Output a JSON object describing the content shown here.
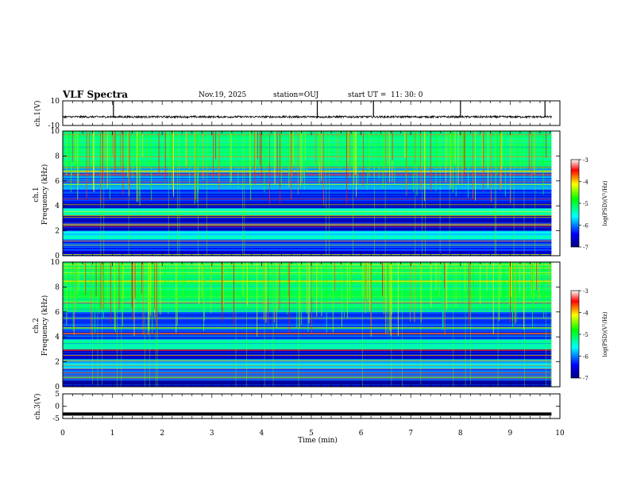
{
  "header": {
    "title": "VLF Spectra",
    "date": "Nov.19, 2025",
    "station": "station=OUJ",
    "start_ut_label": "start  UT  =",
    "start_ut_value": "11: 30: 0"
  },
  "chart_data": [
    {
      "type": "line",
      "name": "ch1-waveform",
      "ylabel": "ch.1(V)",
      "ylim": [
        -10,
        10
      ],
      "yticks": [
        "10",
        "-10"
      ],
      "xlim": [
        0,
        10
      ],
      "baseline": -3,
      "spikes_minutes": [
        1.02,
        5.12,
        6.25,
        8.0,
        9.7
      ]
    },
    {
      "type": "heatmap",
      "name": "ch1-spectrogram",
      "ylabel_channel": "ch.1",
      "ylabel": "Frequency  (kHz)",
      "ylim": [
        0,
        10
      ],
      "yticks": [
        "0",
        "2",
        "4",
        "6",
        "8",
        "10"
      ],
      "xlim": [
        0,
        10
      ],
      "data_end_minute": 9.83,
      "bands_khz": [
        {
          "from": 0.0,
          "to": 0.4,
          "level": -6.6
        },
        {
          "from": 0.4,
          "to": 1.3,
          "level": -6.3
        },
        {
          "from": 1.3,
          "to": 2.0,
          "level": -5.6
        },
        {
          "from": 2.0,
          "to": 3.2,
          "level": -6.6
        },
        {
          "from": 3.2,
          "to": 3.8,
          "level": -5.4
        },
        {
          "from": 3.8,
          "to": 4.2,
          "level": -6.8
        },
        {
          "from": 4.2,
          "to": 5.3,
          "level": -6.3
        },
        {
          "from": 5.3,
          "to": 7.0,
          "level": -5.9
        },
        {
          "from": 7.0,
          "to": 10.0,
          "level": -5.2
        }
      ],
      "colorbar": {
        "label": "log(PSD)(V²/Hz)",
        "ticks": [
          "-3",
          "-4",
          "-5",
          "-6",
          "-7"
        ],
        "range": [
          -7,
          -3
        ]
      }
    },
    {
      "type": "heatmap",
      "name": "ch2-spectrogram",
      "ylabel_channel": "ch.2",
      "ylabel": "Frequency  (kHz)",
      "ylim": [
        0,
        10
      ],
      "yticks": [
        "0",
        "2",
        "4",
        "6",
        "8",
        "10"
      ],
      "xlim": [
        0,
        10
      ],
      "data_end_minute": 9.83,
      "bands_khz": [
        {
          "from": 0.0,
          "to": 0.5,
          "level": -6.8
        },
        {
          "from": 0.5,
          "to": 1.5,
          "level": -6.2
        },
        {
          "from": 1.5,
          "to": 2.2,
          "level": -5.7
        },
        {
          "from": 2.2,
          "to": 3.0,
          "level": -6.6
        },
        {
          "from": 3.0,
          "to": 3.8,
          "level": -5.3
        },
        {
          "from": 3.8,
          "to": 6.0,
          "level": -6.2
        },
        {
          "from": 6.0,
          "to": 10.0,
          "level": -5.1
        }
      ],
      "colorbar": {
        "label": "log(PSD)(V²/Hz)",
        "ticks": [
          "-3",
          "-4",
          "-5",
          "-6",
          "-7"
        ],
        "range": [
          -7,
          -3
        ]
      }
    },
    {
      "type": "line",
      "name": "ch3-waveform",
      "ylabel": "ch.3(V)",
      "ylim": [
        -5,
        5
      ],
      "yticks": [
        "5",
        "0",
        "-5"
      ],
      "xlim": [
        0,
        10
      ],
      "baseline": -3
    }
  ],
  "xaxis": {
    "label": "Time  (min)",
    "ticks": [
      "0",
      "1",
      "2",
      "3",
      "4",
      "5",
      "6",
      "7",
      "8",
      "9",
      "10"
    ]
  },
  "colors": {
    "low": "#000080",
    "mid_low": "#00ffff",
    "mid": "#00ff00",
    "mid_high": "#ffff00",
    "high": "#ff0000",
    "top": "#ffffff"
  }
}
